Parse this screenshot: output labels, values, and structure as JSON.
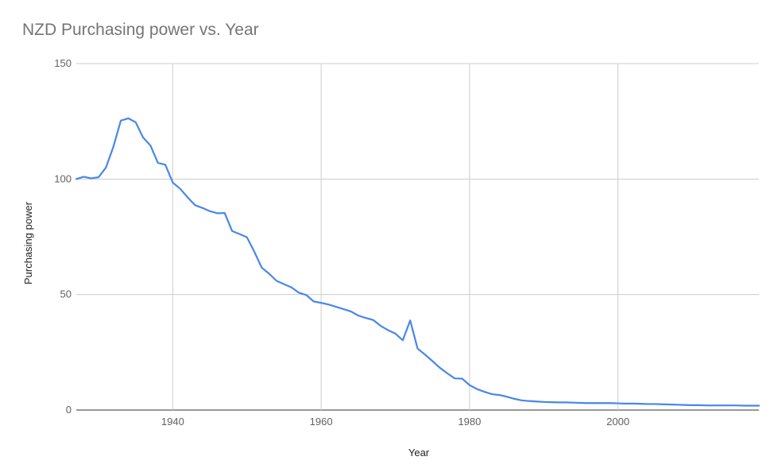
{
  "chart_data": {
    "type": "line",
    "title": "NZD Purchasing power vs. Year",
    "xlabel": "Year",
    "ylabel": "Purchasing power",
    "xlim": [
      1927,
      2019
    ],
    "ylim": [
      0,
      150
    ],
    "x_ticks": [
      1940,
      1960,
      1980,
      2000
    ],
    "y_ticks": [
      0,
      50,
      100,
      150
    ],
    "grid": true,
    "legend": "none",
    "line_color": "#4a86e8",
    "series": [
      {
        "x": [
          1927,
          1928,
          1929,
          1930,
          1931,
          1932,
          1933,
          1934,
          1935,
          1936,
          1937,
          1938,
          1939,
          1940,
          1941,
          1942,
          1943,
          1944,
          1945,
          1946,
          1947,
          1948,
          1949,
          1950,
          1951,
          1952,
          1953,
          1954,
          1955,
          1956,
          1957,
          1958,
          1959,
          1960,
          1961,
          1962,
          1963,
          1964,
          1965,
          1966,
          1967,
          1968,
          1969,
          1970,
          1971,
          1972,
          1973,
          1974,
          1975,
          1976,
          1977,
          1978,
          1979,
          1980,
          1981,
          1982,
          1983,
          1984,
          1985,
          1986,
          1987,
          1988,
          1989,
          1990,
          1991,
          1992,
          1993,
          1994,
          1995,
          1996,
          1997,
          1998,
          1999,
          2000,
          2001,
          2002,
          2003,
          2004,
          2005,
          2006,
          2007,
          2008,
          2009,
          2010,
          2011,
          2012,
          2013,
          2014,
          2015,
          2016,
          2017,
          2018,
          2019
        ],
        "values": [
          100,
          101,
          100.3,
          100.8,
          105,
          114,
          125.3,
          126.3,
          124.6,
          118,
          114.5,
          107,
          106.2,
          98.5,
          95.8,
          92.1,
          88.7,
          87.5,
          86.1,
          85.2,
          85.3,
          77.5,
          76.2,
          74.8,
          68.5,
          61.6,
          59,
          55.9,
          54.5,
          53.1,
          50.8,
          49.8,
          47,
          46.4,
          45.7,
          44.7,
          43.7,
          42.7,
          40.9,
          39.9,
          39,
          36.5,
          34.6,
          33.1,
          30.2,
          38.8,
          26.6,
          24,
          21.2,
          18.3,
          15.9,
          13.7,
          13.6,
          10.8,
          9.1,
          7.9,
          6.9,
          6.5,
          5.8,
          4.9,
          4.2,
          3.9,
          3.7,
          3.5,
          3.4,
          3.3,
          3.3,
          3.2,
          3.1,
          3,
          3,
          3,
          3,
          2.9,
          2.8,
          2.8,
          2.7,
          2.6,
          2.6,
          2.5,
          2.4,
          2.3,
          2.2,
          2.1,
          2.1,
          2,
          2,
          2,
          2,
          2,
          1.9,
          1.9,
          1.9
        ]
      }
    ]
  }
}
